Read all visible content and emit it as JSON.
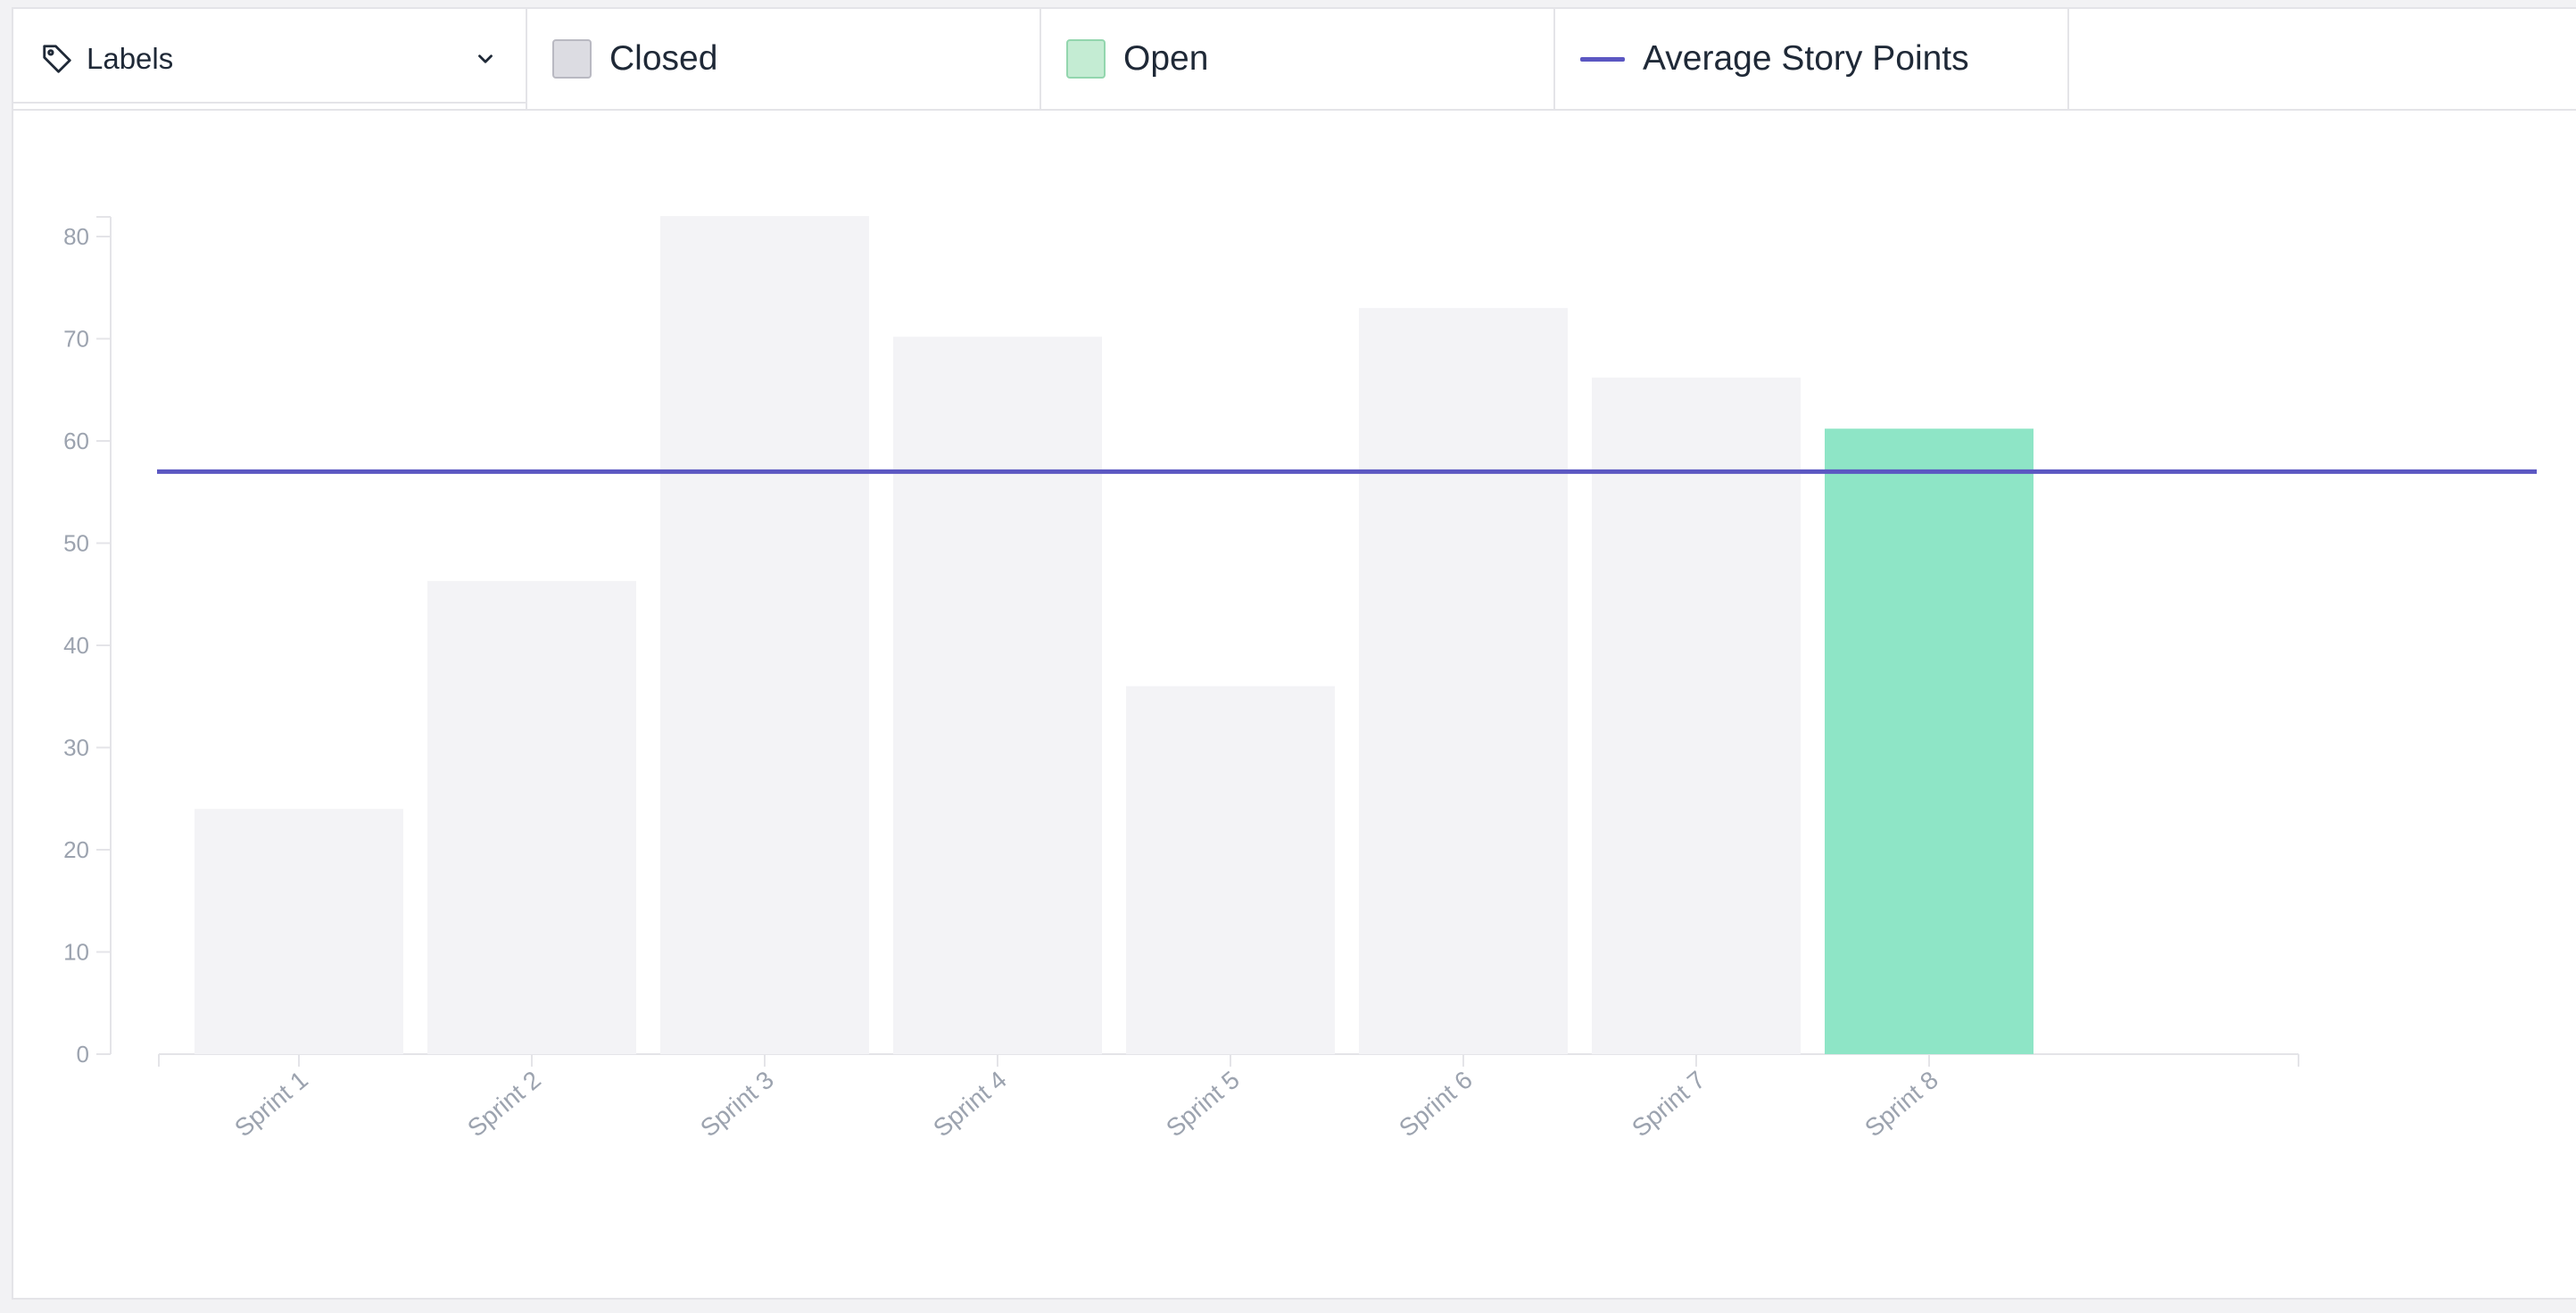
{
  "toolbar": {
    "dropdown_label": "Labels",
    "dropdown_icon": "tag-icon"
  },
  "legend": [
    {
      "label": "Closed",
      "swatch": "#dcdce2",
      "border": "#b9b9c2"
    },
    {
      "label": "Open",
      "swatch": "#c4ecd3",
      "border": "#93d6ae"
    },
    {
      "label": "Average Story Points",
      "line": "#5b57c2"
    }
  ],
  "colors": {
    "closed_bar": "#f3f3f6",
    "open_bar": "#8ee5c6",
    "average_line": "#5b57c2",
    "axis": "#e4e4e8",
    "tick_text": "#9ca3af"
  },
  "chart_data": {
    "type": "bar",
    "categories": [
      "Sprint 1",
      "Sprint 2",
      "Sprint 3",
      "Sprint 4",
      "Sprint 5",
      "Sprint 6",
      "Sprint 7",
      "Sprint 8"
    ],
    "series": [
      {
        "name": "Closed",
        "values": [
          24,
          46.3,
          82,
          70.2,
          36,
          73,
          66.2,
          0
        ]
      },
      {
        "name": "Open",
        "values": [
          0,
          0,
          0,
          0,
          0,
          0,
          0,
          61.2
        ]
      },
      {
        "name": "Average Story Points",
        "type": "line",
        "value": 57
      }
    ],
    "yticks": [
      0,
      10,
      20,
      30,
      40,
      50,
      60,
      70,
      80
    ],
    "ylim": [
      0,
      82
    ],
    "xlabel": "",
    "ylabel": "",
    "grid": false
  }
}
